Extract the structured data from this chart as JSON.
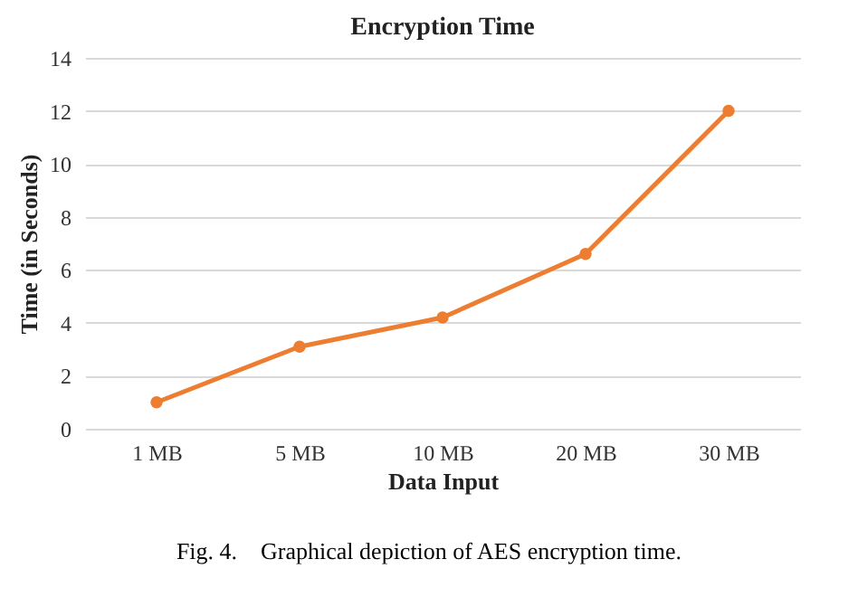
{
  "chart_data": {
    "type": "line",
    "title": "Encryption Time",
    "xlabel": "Data Input",
    "ylabel": "Time (in Seconds)",
    "categories": [
      "1 MB",
      "5 MB",
      "10 MB",
      "20 MB",
      "30 MB"
    ],
    "series": [
      {
        "color": "#ed7d31",
        "values": [
          1.0,
          3.1,
          4.2,
          6.6,
          12.0
        ]
      }
    ],
    "ylim": [
      0,
      14
    ],
    "yticks": [
      0,
      2,
      4,
      6,
      8,
      10,
      12,
      14
    ],
    "grid": "y",
    "marker": "circle",
    "line_style": "solid",
    "annotations": [
      "Fig. 4.    Graphical depiction of AES encryption time."
    ]
  }
}
